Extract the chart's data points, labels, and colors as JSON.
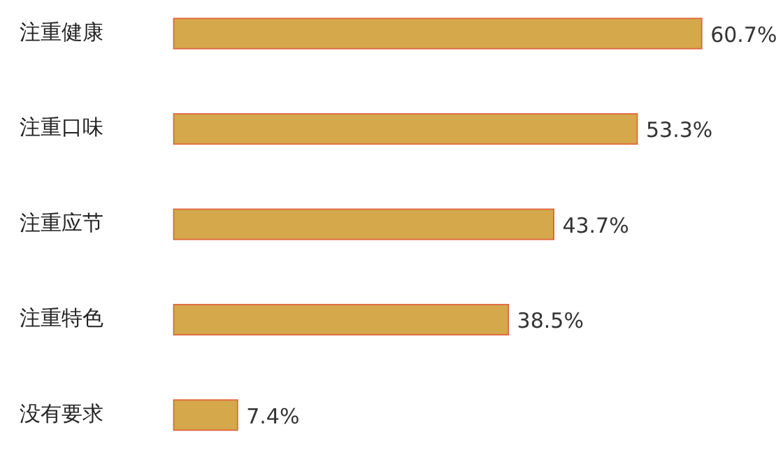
{
  "chart_data": {
    "type": "bar",
    "orientation": "horizontal",
    "categories": [
      "注重健康",
      "注重口味",
      "注重应节",
      "注重特色",
      "没有要求"
    ],
    "values": [
      60.7,
      53.3,
      43.7,
      38.5,
      7.4
    ],
    "value_labels": [
      "60.7%",
      "53.3%",
      "43.7%",
      "38.5%",
      "7.4%"
    ],
    "color": "#d4a84b",
    "tick_labels": "y",
    "legend": false
  }
}
